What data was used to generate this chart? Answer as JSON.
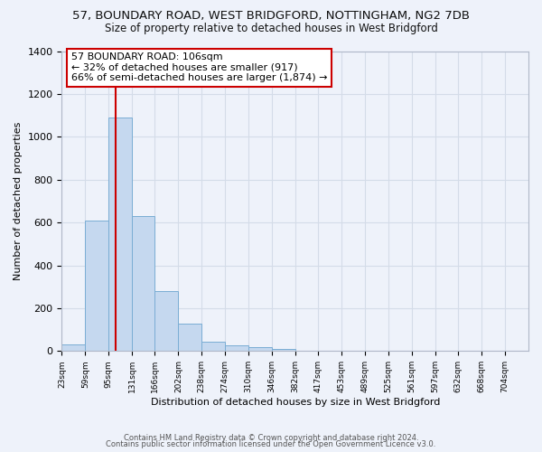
{
  "title": "57, BOUNDARY ROAD, WEST BRIDGFORD, NOTTINGHAM, NG2 7DB",
  "subtitle": "Size of property relative to detached houses in West Bridgford",
  "xlabel": "Distribution of detached houses by size in West Bridgford",
  "ylabel": "Number of detached properties",
  "footnote1": "Contains HM Land Registry data © Crown copyright and database right 2024.",
  "footnote2": "Contains public sector information licensed under the Open Government Licence v3.0.",
  "bin_edges": [
    23,
    59,
    95,
    131,
    166,
    202,
    238,
    274,
    310,
    346,
    382,
    417,
    453,
    489,
    525,
    561,
    597,
    632,
    668,
    704,
    740
  ],
  "bar_heights": [
    30,
    610,
    1090,
    630,
    280,
    130,
    45,
    25,
    20,
    10,
    0,
    0,
    0,
    0,
    0,
    0,
    0,
    0,
    0,
    0
  ],
  "bar_color": "#c5d8ef",
  "bar_edge_color": "#7aadd4",
  "grid_color": "#d4dce8",
  "background_color": "#eef2fa",
  "red_line_x": 106,
  "annotation_line1": "57 BOUNDARY ROAD: 106sqm",
  "annotation_line2": "← 32% of detached houses are smaller (917)",
  "annotation_line3": "66% of semi-detached houses are larger (1,874) →",
  "annotation_box_color": "#ffffff",
  "annotation_box_edge_color": "#cc0000",
  "annotation_text_color": "#000000",
  "red_line_color": "#cc0000",
  "ylim": [
    0,
    1400
  ],
  "yticks": [
    0,
    200,
    400,
    600,
    800,
    1000,
    1200,
    1400
  ]
}
